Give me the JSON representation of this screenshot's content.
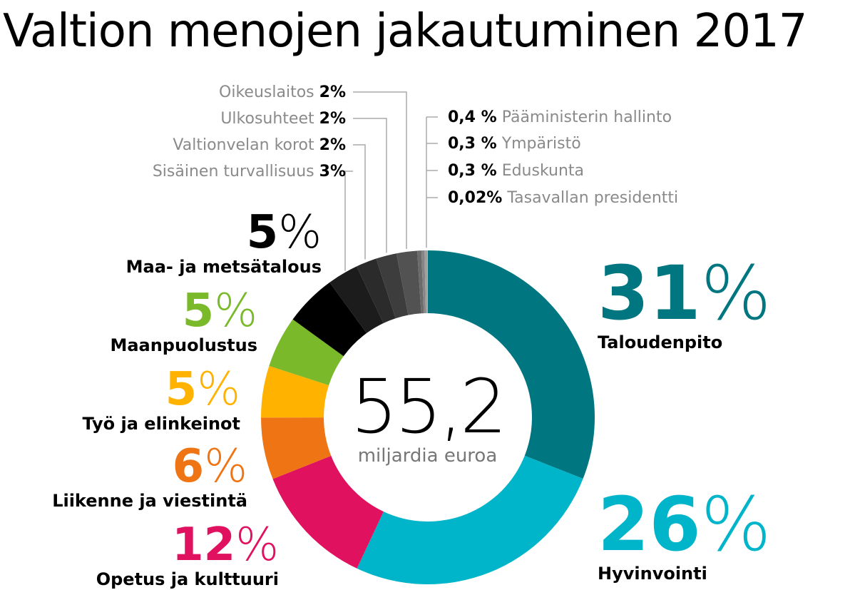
{
  "title": "Valtion menojen jakautuminen 2017",
  "chart_data": {
    "type": "pie",
    "donut": true,
    "title": "Valtion menojen jakautuminen 2017",
    "center_value": "55,2",
    "center_unit": "miljardia euroa",
    "slices": [
      {
        "label": "Taloudenpito",
        "value": 31,
        "display": "31",
        "color": "#007680"
      },
      {
        "label": "Hyvinvointi",
        "value": 26,
        "display": "26",
        "color": "#00b5c9"
      },
      {
        "label": "Opetus ja kulttuuri",
        "value": 12,
        "display": "12",
        "color": "#e0115f"
      },
      {
        "label": "Liikenne ja viestintä",
        "value": 6,
        "display": "6",
        "color": "#ef7514"
      },
      {
        "label": "Työ ja elinkeinot",
        "value": 5,
        "display": "5",
        "color": "#ffb300"
      },
      {
        "label": "Maanpuolustus",
        "value": 5,
        "display": "5",
        "color": "#7ab929"
      },
      {
        "label": "Maa- ja metsätalous",
        "value": 5,
        "display": "5",
        "color": "#000000"
      },
      {
        "label": "Sisäinen turvallisuus",
        "value": 3,
        "display": "3%",
        "color": "#1c1c1c"
      },
      {
        "label": "Valtionvelan korot",
        "value": 2,
        "display": "2%",
        "color": "#2b2b2b"
      },
      {
        "label": "Ulkosuhteet",
        "value": 2,
        "display": "2%",
        "color": "#3d3d3d"
      },
      {
        "label": "Oikeuslaitos",
        "value": 2,
        "display": "2%",
        "color": "#525252"
      },
      {
        "label": "Pääministerin hallinto",
        "value": 0.4,
        "display": "0,4 %",
        "color": "#6b6b6b"
      },
      {
        "label": "Ympäristö",
        "value": 0.3,
        "display": "0,3 %",
        "color": "#858585"
      },
      {
        "label": "Eduskunta",
        "value": 0.3,
        "display": "0,3 %",
        "color": "#a0a0a0"
      },
      {
        "label": "Tasavallan presidentti",
        "value": 0.02,
        "display": "0,02%",
        "color": "#bdbdbd"
      }
    ],
    "percent_sign": "%",
    "colors": {
      "leader_line": "#aaaaaa",
      "small_label": "#8a8a8a"
    }
  }
}
